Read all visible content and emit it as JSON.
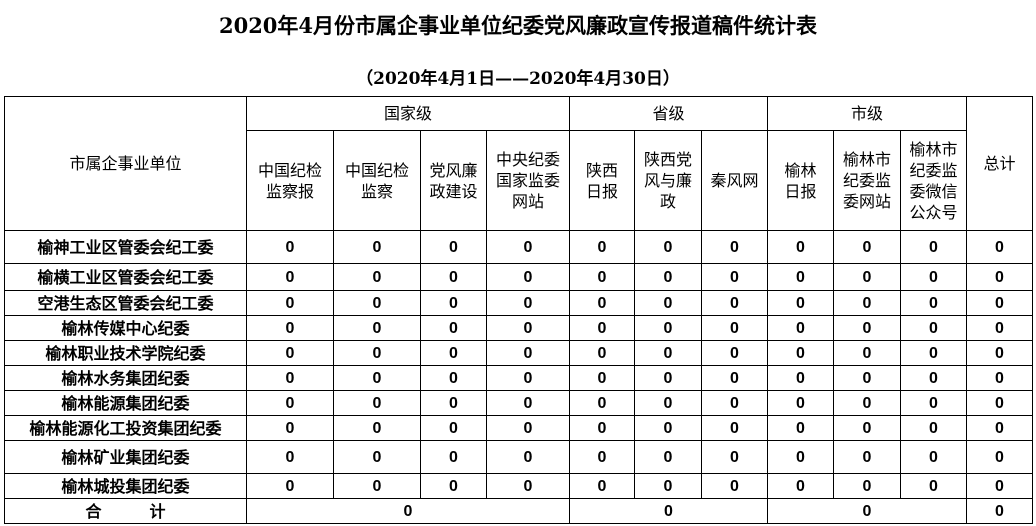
{
  "title": "2020年4月份市属企事业单位纪委党风廉政宣传报道稿件统计表",
  "subtitle": "（2020年4月1日——2020年4月30日）",
  "header": {
    "unit_label": "市属企事业单位",
    "groups": [
      "国家级",
      "省级",
      "市级"
    ],
    "total_label": "总计",
    "columns": [
      [
        "中国纪检",
        "监察报"
      ],
      [
        "中国纪检",
        "监察"
      ],
      [
        "党风廉",
        "政建设"
      ],
      [
        "中央纪委",
        "国家监委",
        "网站"
      ],
      [
        "陕西",
        "日报"
      ],
      [
        "陕西党",
        "风与廉",
        "政"
      ],
      [
        "秦风网"
      ],
      [
        "榆林",
        "日报"
      ],
      [
        "榆林市",
        "纪委监",
        "委网站"
      ],
      [
        "榆林市",
        "纪委监",
        "委微信",
        "公众号"
      ]
    ]
  },
  "rows": [
    {
      "unit": "榆神工业区管委会纪工委",
      "values": [
        "0",
        "0",
        "0",
        "0",
        "0",
        "0",
        "0",
        "0",
        "0",
        "0",
        "0"
      ]
    },
    {
      "unit": "榆横工业区管委会纪工委",
      "values": [
        "0",
        "0",
        "0",
        "0",
        "0",
        "0",
        "0",
        "0",
        "0",
        "0",
        "0"
      ]
    },
    {
      "unit": "空港生态区管委会纪工委",
      "values": [
        "0",
        "0",
        "0",
        "0",
        "0",
        "0",
        "0",
        "0",
        "0",
        "0",
        "0"
      ]
    },
    {
      "unit": "榆林传媒中心纪委",
      "values": [
        "0",
        "0",
        "0",
        "0",
        "0",
        "0",
        "0",
        "0",
        "0",
        "0",
        "0"
      ]
    },
    {
      "unit": "榆林职业技术学院纪委",
      "values": [
        "0",
        "0",
        "0",
        "0",
        "0",
        "0",
        "0",
        "0",
        "0",
        "0",
        "0"
      ]
    },
    {
      "unit": "榆林水务集团纪委",
      "values": [
        "0",
        "0",
        "0",
        "0",
        "0",
        "0",
        "0",
        "0",
        "0",
        "0",
        "0"
      ]
    },
    {
      "unit": "榆林能源集团纪委",
      "values": [
        "0",
        "0",
        "0",
        "0",
        "0",
        "0",
        "0",
        "0",
        "0",
        "0",
        "0"
      ]
    },
    {
      "unit": "榆林能源化工投资集团纪委",
      "values": [
        "0",
        "0",
        "0",
        "0",
        "0",
        "0",
        "0",
        "0",
        "0",
        "0",
        "0"
      ]
    },
    {
      "unit": "榆林矿业集团纪委",
      "values": [
        "0",
        "0",
        "0",
        "0",
        "0",
        "0",
        "0",
        "0",
        "0",
        "0",
        "0"
      ]
    },
    {
      "unit": "榆林城投集团纪委",
      "values": [
        "0",
        "0",
        "0",
        "0",
        "0",
        "0",
        "0",
        "0",
        "0",
        "0",
        "0"
      ]
    }
  ],
  "totals": {
    "label": "合　　　计",
    "national": "0",
    "provincial": "0",
    "city": "0",
    "total": "0"
  }
}
